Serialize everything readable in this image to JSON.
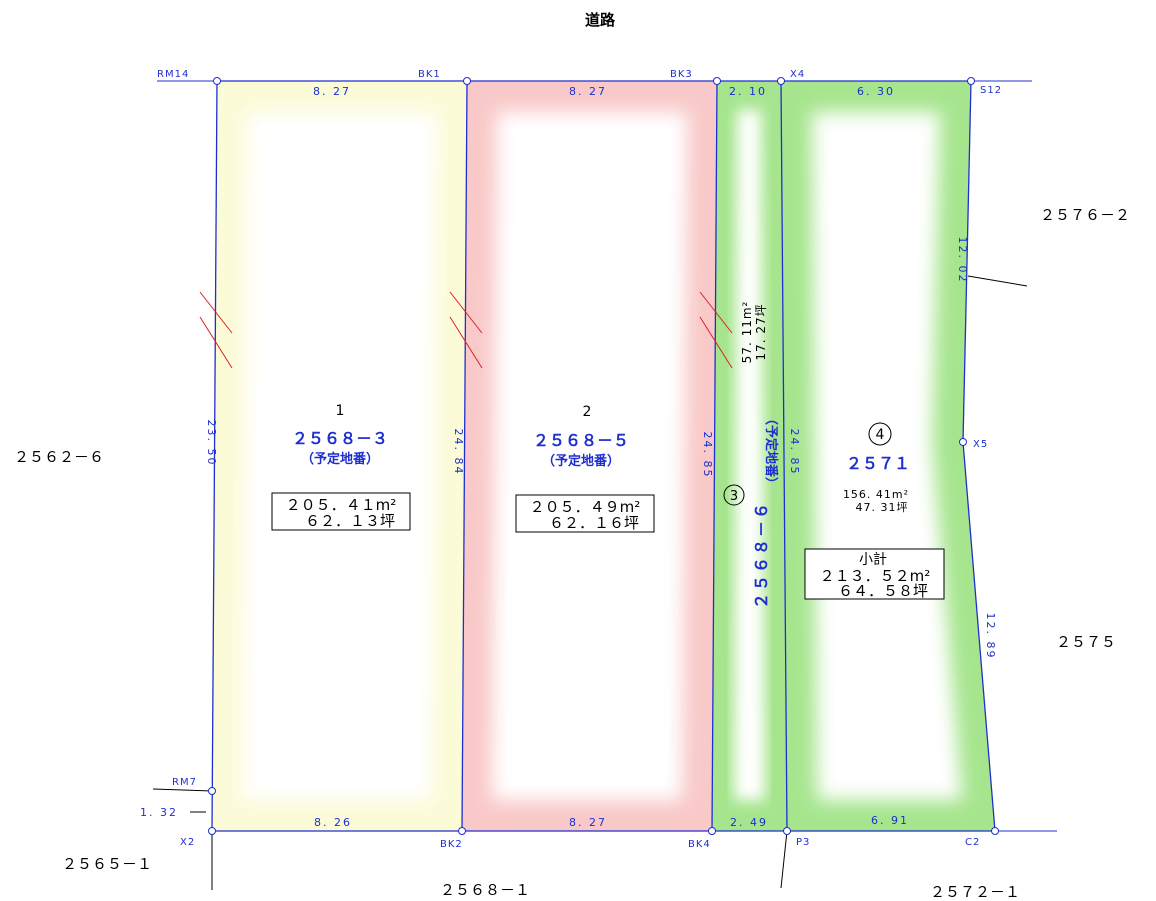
{
  "road_label": "道路",
  "neighbors": {
    "left": "２５６２－６",
    "top_right": "２５７６－２",
    "right": "２５７５",
    "bottom_left": "２５６５－１",
    "bottom_center": "２５６８－１",
    "bottom_right": "２５７２－１"
  },
  "points": {
    "RM14": "RM14",
    "BK1": "BK1",
    "BK3": "BK3",
    "X4": "X4",
    "S12": "S12",
    "X5": "X5",
    "RM7": "RM7",
    "X2": "X2",
    "BK2": "BK2",
    "BK4": "BK4",
    "P3": "P3",
    "C2": "C2"
  },
  "dimensions": {
    "lot1_top": "8. 27",
    "lot2_top": "8. 27",
    "lot3_top": "2. 10",
    "lot4_top": "6. 30",
    "lot1_bottom": "8. 26",
    "lot2_bottom": "8. 27",
    "lot3_bottom": "2. 49",
    "lot4_bottom": "6. 91",
    "left_side": "23. 50",
    "lot1_2_line": "24. 84",
    "lot2_3_line": "24. 85",
    "lot3_4_line": "24. 85",
    "right_upper": "12. 02",
    "right_lower": "12. 89",
    "offset": "1. 32"
  },
  "lots": {
    "lot1": {
      "number": "1",
      "parcel": "２５６８－３",
      "note": "（予定地番）",
      "area_m2": "２０５．４１m²",
      "area_tsubo": "６２．１３坪"
    },
    "lot2": {
      "number": "2",
      "parcel": "２５６８－５",
      "note": "（予定地番）",
      "area_m2": "２０５．４９m²",
      "area_tsubo": "６２．１６坪"
    },
    "lot3": {
      "number": "3",
      "parcel": "２５６８－６",
      "note": "（予定地番）",
      "area_m2": "57. 11m²",
      "area_tsubo": "17. 27坪"
    },
    "lot4": {
      "number": "4",
      "parcel": "２５７１",
      "area_m2": "156. 41m²",
      "area_tsubo": "47. 31坪"
    }
  },
  "subtotal": {
    "title": "小計",
    "area_m2": "２１３．５２m²",
    "area_tsubo": "６４．５８坪"
  },
  "colors": {
    "boundary": "#1f2fcf",
    "lot1_fill": "#fbfbd8",
    "lot2_fill": "#f9c9c9",
    "lot34_fill": "#a6e58e",
    "hatch": "#e02020",
    "text_blue": "#1f2fcf"
  }
}
